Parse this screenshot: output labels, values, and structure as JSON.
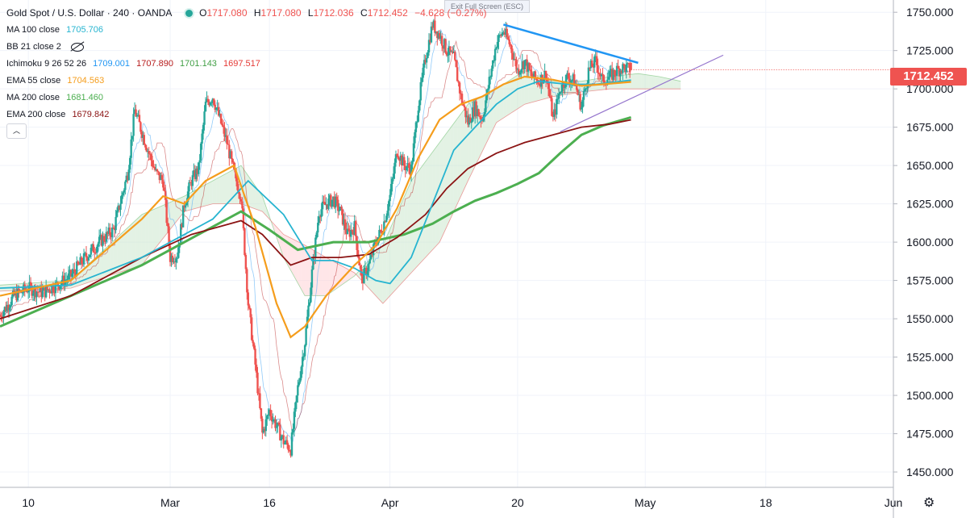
{
  "header": {
    "title": "Gold Spot / U.S. Dollar · 240 · OANDA",
    "ohlc": {
      "open_label": "O",
      "open": "1717.080",
      "high_label": "H",
      "high": "1717.080",
      "low_label": "L",
      "low": "1712.036",
      "close_label": "C",
      "close": "1712.452",
      "change": "−4.628 (−0.27%)"
    },
    "exit_fullscreen": "Exit Full Screen (ESC)"
  },
  "legend": {
    "ma100": {
      "label": "MA 100 close",
      "value": "1705.706"
    },
    "bb": {
      "label": "BB 21 close 2"
    },
    "ichimoku": {
      "label": "Ichimoku 9 26 52 26",
      "v1": "1709.001",
      "v2": "1707.890",
      "v3": "1701.143",
      "v4": "1697.517"
    },
    "ema55": {
      "label": "EMA 55 close",
      "value": "1704.563"
    },
    "ma200": {
      "label": "MA 200 close",
      "value": "1681.460"
    },
    "ema200": {
      "label": "EMA 200 close",
      "value": "1679.842"
    },
    "collapse_glyph": "︿"
  },
  "price_tag": "1712.452",
  "colors": {
    "up": "#26a69a",
    "down": "#ef5350",
    "ma100": "#26b4d0",
    "ema55": "#f59d1c",
    "ma200": "#4caf50",
    "ema200": "#8b1414",
    "trend_down": "#2196f3",
    "trend_up": "#9575cd",
    "cloud_bull": "#c8e6c9",
    "cloud_bear": "#ffcdd2",
    "tenkan": "#64b5f6",
    "kijun": "#b71c1c"
  },
  "chart_data": {
    "type": "candlestick",
    "symbol": "XAUUSD",
    "timeframe": "240",
    "ylim": [
      1440,
      1758
    ],
    "y_ticks": [
      "1750.000",
      "1725.000",
      "1700.000",
      "1675.000",
      "1650.000",
      "1625.000",
      "1600.000",
      "1575.000",
      "1550.000",
      "1525.000",
      "1500.000",
      "1475.000",
      "1450.000"
    ],
    "x_ticks": [
      "10",
      "Mar",
      "16",
      "Apr",
      "20",
      "May",
      "18",
      "Jun"
    ],
    "x_range_days": [
      0,
      126
    ],
    "x_tick_days": [
      4,
      24,
      38,
      55,
      73,
      91,
      108,
      126
    ],
    "close_path": [
      [
        0,
        1552
      ],
      [
        2,
        1565
      ],
      [
        4,
        1570
      ],
      [
        6,
        1567
      ],
      [
        8,
        1572
      ],
      [
        10,
        1578
      ],
      [
        12,
        1590
      ],
      [
        14,
        1600
      ],
      [
        16,
        1608
      ],
      [
        18,
        1645
      ],
      [
        19,
        1686
      ],
      [
        21,
        1658
      ],
      [
        22,
        1645
      ],
      [
        23,
        1640
      ],
      [
        24,
        1590
      ],
      [
        25,
        1592
      ],
      [
        26,
        1625
      ],
      [
        27,
        1640
      ],
      [
        28,
        1648
      ],
      [
        29,
        1690
      ],
      [
        30,
        1695
      ],
      [
        31,
        1680
      ],
      [
        32,
        1665
      ],
      [
        33,
        1645
      ],
      [
        34,
        1630
      ],
      [
        35,
        1560
      ],
      [
        36,
        1520
      ],
      [
        37,
        1475
      ],
      [
        38,
        1490
      ],
      [
        39,
        1480
      ],
      [
        40,
        1470
      ],
      [
        41,
        1465
      ],
      [
        42,
        1505
      ],
      [
        43,
        1535
      ],
      [
        44,
        1580
      ],
      [
        45,
        1620
      ],
      [
        46,
        1625
      ],
      [
        47,
        1628
      ],
      [
        48,
        1620
      ],
      [
        49,
        1605
      ],
      [
        50,
        1610
      ],
      [
        51,
        1575
      ],
      [
        52,
        1585
      ],
      [
        53,
        1600
      ],
      [
        54,
        1610
      ],
      [
        55,
        1630
      ],
      [
        56,
        1660
      ],
      [
        57,
        1650
      ],
      [
        58,
        1648
      ],
      [
        59,
        1690
      ],
      [
        60,
        1720
      ],
      [
        61,
        1742
      ],
      [
        62,
        1735
      ],
      [
        63,
        1725
      ],
      [
        64,
        1720
      ],
      [
        65,
        1695
      ],
      [
        66,
        1678
      ],
      [
        67,
        1688
      ],
      [
        68,
        1680
      ],
      [
        69,
        1705
      ],
      [
        70,
        1730
      ],
      [
        71,
        1738
      ],
      [
        72,
        1728
      ],
      [
        73,
        1712
      ],
      [
        74,
        1718
      ],
      [
        75,
        1708
      ],
      [
        76,
        1705
      ],
      [
        77,
        1710
      ],
      [
        78,
        1680
      ],
      [
        79,
        1700
      ],
      [
        80,
        1708
      ],
      [
        81,
        1705
      ],
      [
        82,
        1688
      ],
      [
        83,
        1712
      ],
      [
        84,
        1718
      ],
      [
        85,
        1705
      ],
      [
        86,
        1708
      ],
      [
        87,
        1712
      ],
      [
        88,
        1714
      ],
      [
        89,
        1712.452
      ]
    ],
    "moving_averages": {
      "ma100": [
        [
          0,
          1570
        ],
        [
          10,
          1572
        ],
        [
          20,
          1590
        ],
        [
          30,
          1615
        ],
        [
          35,
          1640
        ],
        [
          40,
          1618
        ],
        [
          44,
          1588
        ],
        [
          47,
          1588
        ],
        [
          50,
          1583
        ],
        [
          53,
          1575
        ],
        [
          55,
          1573
        ],
        [
          58,
          1590
        ],
        [
          61,
          1625
        ],
        [
          64,
          1660
        ],
        [
          67,
          1675
        ],
        [
          70,
          1690
        ],
        [
          73,
          1700
        ],
        [
          76,
          1705
        ],
        [
          80,
          1703
        ],
        [
          84,
          1703
        ],
        [
          89,
          1705.706
        ]
      ],
      "ema55": [
        [
          0,
          1565
        ],
        [
          10,
          1575
        ],
        [
          20,
          1615
        ],
        [
          23,
          1630
        ],
        [
          26,
          1625
        ],
        [
          29,
          1640
        ],
        [
          33,
          1650
        ],
        [
          36,
          1610
        ],
        [
          39,
          1560
        ],
        [
          41,
          1538
        ],
        [
          43,
          1545
        ],
        [
          46,
          1565
        ],
        [
          50,
          1585
        ],
        [
          53,
          1598
        ],
        [
          56,
          1622
        ],
        [
          59,
          1655
        ],
        [
          62,
          1680
        ],
        [
          65,
          1690
        ],
        [
          68,
          1695
        ],
        [
          71,
          1703
        ],
        [
          74,
          1708
        ],
        [
          78,
          1706
        ],
        [
          82,
          1702
        ],
        [
          85,
          1703
        ],
        [
          89,
          1704.563
        ]
      ],
      "ma200": [
        [
          0,
          1545
        ],
        [
          10,
          1565
        ],
        [
          20,
          1585
        ],
        [
          30,
          1610
        ],
        [
          34,
          1620
        ],
        [
          38,
          1608
        ],
        [
          42,
          1595
        ],
        [
          47,
          1600
        ],
        [
          52,
          1600
        ],
        [
          57,
          1605
        ],
        [
          61,
          1612
        ],
        [
          64,
          1620
        ],
        [
          67,
          1627
        ],
        [
          70,
          1632
        ],
        [
          73,
          1638
        ],
        [
          76,
          1645
        ],
        [
          79,
          1658
        ],
        [
          82,
          1670
        ],
        [
          85,
          1676
        ],
        [
          89,
          1681.46
        ]
      ],
      "ema200": [
        [
          0,
          1550
        ],
        [
          10,
          1565
        ],
        [
          20,
          1590
        ],
        [
          27,
          1605
        ],
        [
          34,
          1614
        ],
        [
          37,
          1605
        ],
        [
          41,
          1585
        ],
        [
          44,
          1590
        ],
        [
          48,
          1590
        ],
        [
          52,
          1592
        ],
        [
          56,
          1603
        ],
        [
          60,
          1618
        ],
        [
          63,
          1635
        ],
        [
          66,
          1648
        ],
        [
          70,
          1658
        ],
        [
          74,
          1665
        ],
        [
          78,
          1670
        ],
        [
          82,
          1675
        ],
        [
          86,
          1677
        ],
        [
          89,
          1679.842
        ]
      ]
    },
    "ichimoku_cloud": {
      "span_a": [
        [
          0,
          1572
        ],
        [
          10,
          1575
        ],
        [
          20,
          1618
        ],
        [
          26,
          1630
        ],
        [
          30,
          1640
        ],
        [
          34,
          1650
        ],
        [
          37,
          1630
        ],
        [
          40,
          1590
        ],
        [
          43,
          1565
        ],
        [
          46,
          1565
        ],
        [
          50,
          1578
        ],
        [
          54,
          1598
        ],
        [
          58,
          1640
        ],
        [
          62,
          1665
        ],
        [
          66,
          1690
        ],
        [
          70,
          1700
        ],
        [
          74,
          1712
        ],
        [
          78,
          1705
        ],
        [
          82,
          1705
        ],
        [
          86,
          1708
        ],
        [
          90,
          1710
        ],
        [
          93,
          1708
        ],
        [
          96,
          1705
        ]
      ],
      "span_b": [
        [
          0,
          1568
        ],
        [
          10,
          1570
        ],
        [
          20,
          1585
        ],
        [
          26,
          1620
        ],
        [
          30,
          1625
        ],
        [
          34,
          1625
        ],
        [
          37,
          1620
        ],
        [
          40,
          1605
        ],
        [
          43,
          1598
        ],
        [
          46,
          1590
        ],
        [
          50,
          1580
        ],
        [
          54,
          1560
        ],
        [
          58,
          1580
        ],
        [
          62,
          1600
        ],
        [
          66,
          1640
        ],
        [
          70,
          1678
        ],
        [
          74,
          1690
        ],
        [
          78,
          1695
        ],
        [
          82,
          1698
        ],
        [
          86,
          1700
        ],
        [
          90,
          1700
        ],
        [
          93,
          1700
        ],
        [
          96,
          1700
        ]
      ]
    },
    "trendlines": [
      {
        "name": "descending-resistance",
        "from": [
          71,
          1742
        ],
        "to": [
          90,
          1717
        ]
      },
      {
        "name": "ascending-support",
        "from": [
          79,
          1672
        ],
        "to": [
          102,
          1722
        ]
      }
    ]
  }
}
